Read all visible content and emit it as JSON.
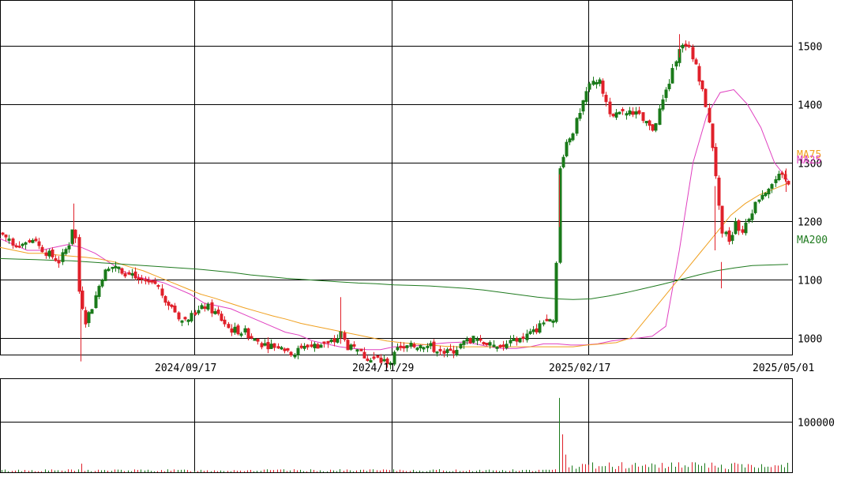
{
  "chart_data": {
    "type": "candlestick",
    "x_ticks": [
      "2024/09/17",
      "2024/11/29",
      "2025/02/17",
      "2025/05/01"
    ],
    "price_ticks": [
      1000,
      1100,
      1200,
      1300,
      1400,
      1500
    ],
    "volume_ticks": [
      "100000"
    ],
    "price_range": [
      930,
      1520
    ],
    "volume_range": [
      0,
      150000
    ],
    "grid": true,
    "colors": {
      "up": "#1a7a1a",
      "down": "#e0202a",
      "ma25": "#e040c0",
      "ma75": "#f0a020",
      "ma200": "#1f7a1f",
      "grid": "#000000"
    },
    "series": [
      {
        "name": "MA25",
        "values": [
          1170,
          1160,
          1150,
          1150,
          1155,
          1160,
          1155,
          1145,
          1130,
          1115,
          1105,
          1100,
          1095,
          1085,
          1075,
          1060,
          1055,
          1050,
          1040,
          1030,
          1020,
          1010,
          1005,
          995,
          990,
          985,
          982,
          980,
          980,
          985,
          985,
          988,
          990,
          992,
          993,
          990,
          985,
          982,
          982,
          985,
          990,
          990,
          988,
          988,
          990,
          995,
          998,
          1000,
          1003,
          1020,
          1150,
          1300,
          1380,
          1420,
          1425,
          1400,
          1360,
          1300,
          1270
        ]
      },
      {
        "name": "MA75",
        "values": [
          1155,
          1150,
          1145,
          1145,
          1142,
          1140,
          1138,
          1135,
          1130,
          1122,
          1115,
          1105,
          1095,
          1085,
          1075,
          1068,
          1060,
          1052,
          1045,
          1038,
          1032,
          1025,
          1020,
          1015,
          1010,
          1005,
          1000,
          995,
          992,
          990,
          988,
          986,
          985,
          985,
          985,
          985,
          985,
          985,
          985,
          985,
          985,
          988,
          990,
          992,
          1000,
          1030,
          1060,
          1090,
          1120,
          1150,
          1180,
          1210,
          1230,
          1245,
          1255,
          1265
        ]
      },
      {
        "name": "MA200",
        "values": [
          1136,
          1135,
          1134,
          1133,
          1132,
          1130,
          1128,
          1126,
          1124,
          1122,
          1120,
          1118,
          1115,
          1112,
          1108,
          1105,
          1102,
          1100,
          1098,
          1096,
          1094,
          1093,
          1091,
          1090,
          1089,
          1087,
          1085,
          1082,
          1078,
          1074,
          1070,
          1067,
          1066,
          1067,
          1072,
          1078,
          1085,
          1092,
          1100,
          1108,
          1115,
          1120,
          1124,
          1125,
          1126
        ]
      }
    ],
    "ma_labels": [
      "MA75",
      "MA25",
      "MA200"
    ]
  }
}
